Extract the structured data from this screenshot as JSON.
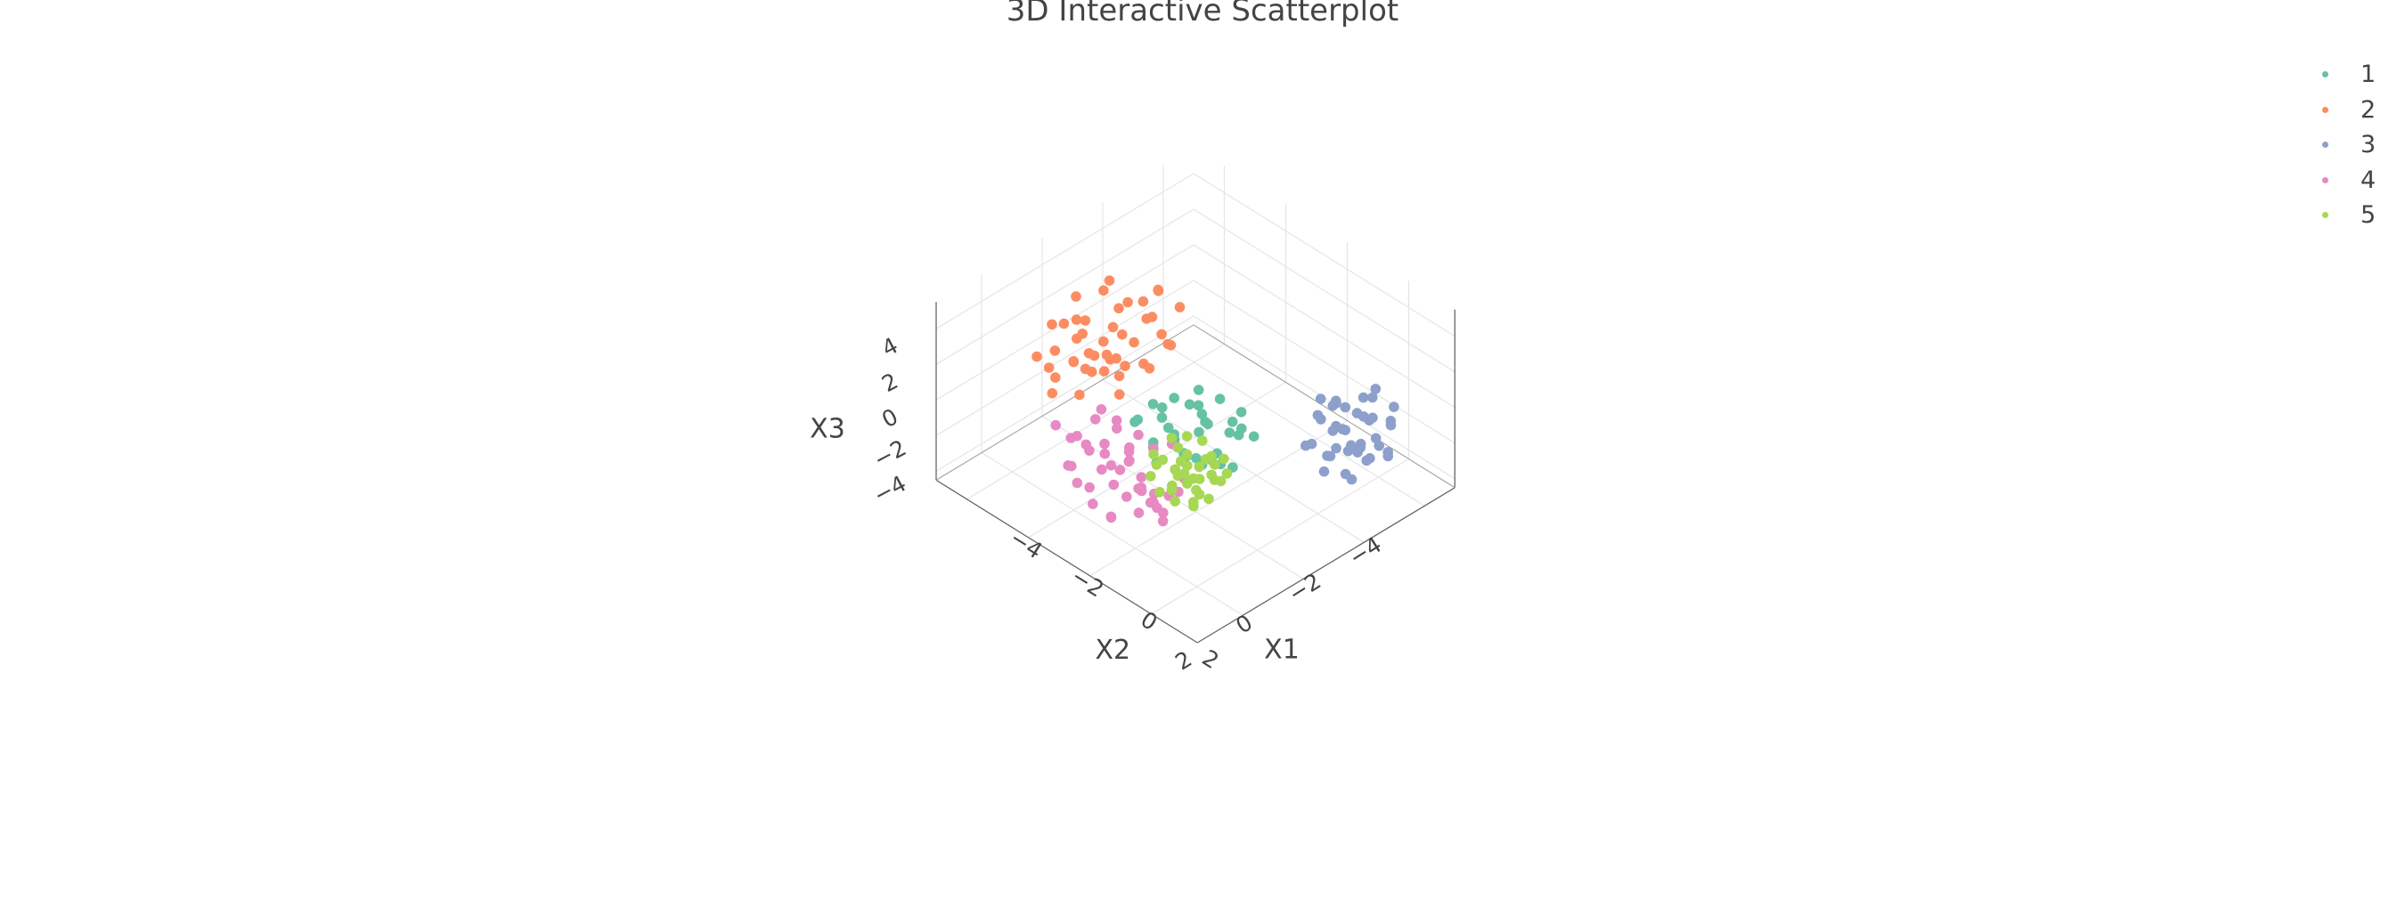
{
  "chart_data": {
    "type": "scatter",
    "title": "3D Interactive Scatterplot",
    "axes": {
      "x": {
        "label": "X1",
        "range": [
          -5,
          3.5
        ],
        "ticks": [
          "−4",
          "−2",
          "0",
          "2"
        ]
      },
      "y": {
        "label": "X2",
        "range": [
          -5,
          3.5
        ],
        "ticks": [
          "−4",
          "−2",
          "0",
          "2"
        ]
      },
      "z": {
        "label": "X3",
        "range": [
          -4.5,
          5.5
        ],
        "ticks": [
          "−4",
          "−2",
          "0",
          "2",
          "4"
        ]
      }
    },
    "grid": true,
    "legend_position": "top-right",
    "series": [
      {
        "name": "1",
        "color": "#66c2a5",
        "points": [
          [
            0.2,
            0.1,
            0.3
          ],
          [
            -0.5,
            0.4,
            0.1
          ],
          [
            0.8,
            -0.3,
            0.5
          ],
          [
            -0.2,
            -0.6,
            -0.4
          ],
          [
            0.4,
            0.7,
            -0.2
          ],
          [
            -0.9,
            0.2,
            0.6
          ],
          [
            1.0,
            0.5,
            0.0
          ],
          [
            -0.3,
            1.1,
            0.2
          ],
          [
            0.6,
            -0.9,
            -0.1
          ],
          [
            -1.1,
            -0.4,
            0.3
          ],
          [
            0.1,
            -0.1,
            1.0
          ],
          [
            0.9,
            0.9,
            0.4
          ],
          [
            -0.6,
            0.8,
            -0.7
          ],
          [
            0.3,
            -1.2,
            0.2
          ],
          [
            -0.8,
            -0.9,
            -0.3
          ],
          [
            1.3,
            0.1,
            -0.5
          ],
          [
            -0.1,
            0.3,
            -1.0
          ],
          [
            0.5,
            0.2,
            1.3
          ],
          [
            -1.3,
            0.6,
            -0.1
          ],
          [
            0.7,
            -0.5,
            0.8
          ],
          [
            -0.4,
            -0.2,
            0.9
          ],
          [
            0.0,
            1.3,
            -0.4
          ],
          [
            1.1,
            -0.8,
            0.1
          ],
          [
            -0.7,
            0.0,
            -0.9
          ],
          [
            0.2,
            0.9,
            0.7
          ],
          [
            -1.0,
            1.0,
            0.5
          ],
          [
            0.6,
            0.4,
            -0.8
          ],
          [
            -0.2,
            -1.0,
            0.6
          ],
          [
            1.4,
            0.6,
            0.3
          ],
          [
            -0.5,
            -0.6,
            1.2
          ],
          [
            0.8,
            1.2,
            -0.3
          ],
          [
            -1.2,
            -0.1,
            -0.6
          ],
          [
            0.3,
            -0.4,
            -1.3
          ],
          [
            -0.9,
            0.5,
            1.1
          ],
          [
            1.2,
            -0.2,
            0.9
          ]
        ]
      },
      {
        "name": "2",
        "color": "#fc8d62",
        "points": [
          [
            -2.4,
            0.3,
            3.6
          ],
          [
            -3.0,
            -0.5,
            3.2
          ],
          [
            -1.8,
            0.8,
            3.0
          ],
          [
            -2.6,
            1.4,
            2.6
          ],
          [
            -3.4,
            0.2,
            2.8
          ],
          [
            -2.0,
            -0.9,
            2.4
          ],
          [
            -2.9,
            1.0,
            4.2
          ],
          [
            -1.6,
            0.1,
            2.2
          ],
          [
            -3.6,
            -0.8,
            3.8
          ],
          [
            -2.2,
            1.8,
            3.4
          ],
          [
            -2.8,
            -1.4,
            2.0
          ],
          [
            -3.2,
            1.6,
            1.8
          ],
          [
            -1.9,
            -0.3,
            4.0
          ],
          [
            -2.5,
            0.9,
            1.6
          ],
          [
            -3.8,
            0.5,
            2.5
          ],
          [
            -2.1,
            -1.6,
            3.1
          ],
          [
            -3.1,
            -0.1,
            4.5
          ],
          [
            -1.7,
            1.3,
            2.9
          ],
          [
            -2.7,
            -0.7,
            1.4
          ],
          [
            -3.5,
            1.2,
            3.5
          ],
          [
            -2.3,
            0.5,
            2.1
          ],
          [
            -3.3,
            -1.1,
            2.6
          ],
          [
            -2.0,
            1.5,
            3.8
          ],
          [
            -2.9,
            0.0,
            1.2
          ],
          [
            -1.5,
            -0.6,
            2.7
          ],
          [
            -3.7,
            0.9,
            1.5
          ],
          [
            -2.4,
            -1.2,
            4.1
          ],
          [
            -2.6,
            2.0,
            2.3
          ],
          [
            -3.0,
            0.7,
            3.0
          ],
          [
            -1.8,
            -1.0,
            1.9
          ],
          [
            -3.4,
            -0.4,
            1.0
          ],
          [
            -2.2,
            0.2,
            3.3
          ],
          [
            -2.8,
            1.9,
            1.1
          ],
          [
            -3.9,
            0.0,
            3.4
          ],
          [
            -2.5,
            -0.2,
            0.8
          ],
          [
            -1.6,
            0.9,
            1.3
          ],
          [
            -3.2,
            0.4,
            0.5
          ],
          [
            -2.0,
            -0.5,
            0.9
          ],
          [
            -2.7,
            1.1,
            0.3
          ],
          [
            -3.6,
            -0.3,
            0.1
          ],
          [
            -2.3,
            1.6,
            4.4
          ],
          [
            -3.0,
            -1.8,
            2.9
          ],
          [
            -1.9,
            0.6,
            1.7
          ],
          [
            -2.6,
            -0.9,
            3.6
          ],
          [
            -3.5,
            1.7,
            2.2
          ]
        ]
      },
      {
        "name": "3",
        "color": "#8da0cb",
        "points": [
          [
            2.0,
            -2.6,
            -0.2
          ],
          [
            2.6,
            -3.2,
            0.3
          ],
          [
            1.8,
            -2.0,
            -0.8
          ],
          [
            2.9,
            -2.4,
            -0.5
          ],
          [
            2.2,
            -3.6,
            0.6
          ],
          [
            1.6,
            -2.9,
            -1.2
          ],
          [
            3.1,
            -2.8,
            0.1
          ],
          [
            2.4,
            -1.8,
            -1.5
          ],
          [
            1.9,
            -3.4,
            -0.4
          ],
          [
            2.7,
            -2.1,
            0.9
          ],
          [
            3.3,
            -3.0,
            -0.9
          ],
          [
            2.1,
            -2.5,
            1.3
          ],
          [
            2.5,
            -3.9,
            -0.7
          ],
          [
            1.7,
            -2.3,
            0.4
          ],
          [
            3.0,
            -1.9,
            -1.1
          ],
          [
            2.3,
            -3.1,
            -1.6
          ],
          [
            2.8,
            -2.7,
            1.1
          ],
          [
            1.5,
            -3.0,
            0.0
          ],
          [
            3.2,
            -2.2,
            0.5
          ],
          [
            2.0,
            -3.7,
            -1.0
          ],
          [
            2.6,
            -1.7,
            -0.3
          ],
          [
            1.8,
            -2.8,
            0.8
          ],
          [
            2.9,
            -3.5,
            -0.1
          ],
          [
            2.4,
            -2.2,
            -0.6
          ],
          [
            3.4,
            -2.6,
            0.2
          ],
          [
            2.2,
            -3.3,
            0.9
          ],
          [
            1.7,
            -1.9,
            -0.9
          ],
          [
            2.7,
            -3.8,
            0.4
          ],
          [
            3.1,
            -2.0,
            -1.4
          ],
          [
            2.1,
            -2.9,
            -1.8
          ],
          [
            2.5,
            -2.4,
            1.6
          ],
          [
            1.9,
            -3.2,
            -2.0
          ],
          [
            2.8,
            -1.6,
            0.0
          ],
          [
            3.0,
            -3.3,
            -1.3
          ],
          [
            2.3,
            -2.6,
            -0.1
          ],
          [
            1.6,
            -2.5,
            1.0
          ],
          [
            2.6,
            -3.0,
            -1.9
          ],
          [
            3.3,
            -2.4,
            -0.4
          ],
          [
            2.0,
            -2.1,
            0.7
          ],
          [
            2.4,
            -3.5,
            1.4
          ]
        ]
      },
      {
        "name": "4",
        "color": "#e78ac3",
        "points": [
          [
            -0.3,
            1.9,
            0.5
          ],
          [
            0.4,
            2.3,
            -0.4
          ],
          [
            -1.0,
            1.6,
            1.2
          ],
          [
            0.8,
            2.6,
            0.2
          ],
          [
            -0.6,
            2.9,
            -0.8
          ],
          [
            1.1,
            1.8,
            0.9
          ],
          [
            -1.3,
            2.2,
            -0.2
          ],
          [
            0.2,
            3.0,
            1.4
          ],
          [
            -0.8,
            1.4,
            -1.1
          ],
          [
            0.6,
            2.0,
            -1.3
          ],
          [
            -1.5,
            2.6,
            0.7
          ],
          [
            1.3,
            2.4,
            -0.7
          ],
          [
            -0.1,
            1.7,
            -1.5
          ],
          [
            0.9,
            3.2,
            0.6
          ],
          [
            -1.1,
            3.1,
            0.1
          ],
          [
            0.3,
            2.5,
            2.0
          ],
          [
            -0.5,
            2.1,
            1.8
          ],
          [
            1.5,
            2.9,
            1.1
          ],
          [
            -1.7,
            1.9,
            -0.6
          ],
          [
            0.0,
            2.8,
            -1.9
          ],
          [
            0.7,
            1.5,
            1.6
          ],
          [
            -0.9,
            2.4,
            2.2
          ],
          [
            1.0,
            2.1,
            -1.8
          ],
          [
            -1.4,
            1.7,
            1.5
          ],
          [
            0.5,
            3.3,
            -0.9
          ],
          [
            -0.2,
            2.3,
            0.0
          ],
          [
            1.2,
            1.6,
            0.3
          ],
          [
            -0.7,
            3.4,
            0.8
          ],
          [
            0.1,
            1.9,
            -0.5
          ],
          [
            -1.2,
            2.7,
            -1.4
          ],
          [
            1.4,
            2.7,
            0.0
          ],
          [
            -0.4,
            2.6,
            1.0
          ],
          [
            0.8,
            1.7,
            -1.0
          ],
          [
            -1.6,
            2.3,
            0.4
          ],
          [
            0.3,
            2.2,
            2.4
          ],
          [
            -0.9,
            1.8,
            -2.1
          ],
          [
            1.1,
            3.0,
            -0.3
          ],
          [
            -0.3,
            3.1,
            -1.2
          ],
          [
            0.6,
            2.8,
            1.9
          ],
          [
            -1.0,
            2.0,
            0.3
          ],
          [
            0.2,
            1.6,
            0.9
          ],
          [
            -0.6,
            2.5,
            -0.2
          ],
          [
            1.6,
            2.2,
            0.6
          ],
          [
            -1.8,
            2.8,
            1.3
          ],
          [
            0.4,
            1.9,
            -1.6
          ]
        ]
      },
      {
        "name": "5",
        "color": "#a6d854",
        "points": [
          [
            0.9,
            1.2,
            0.3
          ],
          [
            1.3,
            0.8,
            -0.2
          ],
          [
            0.5,
            1.6,
            0.6
          ],
          [
            1.6,
            1.0,
            0.9
          ],
          [
            0.7,
            0.6,
            -0.6
          ],
          [
            1.1,
            1.9,
            0.1
          ],
          [
            0.3,
            1.1,
            1.1
          ],
          [
            1.8,
            1.4,
            -0.4
          ],
          [
            0.6,
            1.8,
            -0.9
          ],
          [
            1.4,
            0.5,
            0.5
          ],
          [
            0.8,
            1.4,
            1.4
          ],
          [
            1.2,
            1.1,
            -1.1
          ],
          [
            0.4,
            0.9,
            -0.3
          ],
          [
            1.7,
            0.7,
            0.2
          ],
          [
            1.0,
            1.7,
            0.7
          ],
          [
            0.2,
            1.5,
            -0.1
          ],
          [
            1.5,
            1.6,
            -0.7
          ],
          [
            0.9,
            0.4,
            0.0
          ],
          [
            1.9,
            1.1,
            0.4
          ],
          [
            0.6,
            2.1,
            0.3
          ],
          [
            1.1,
            0.9,
            1.6
          ],
          [
            0.5,
            1.3,
            -1.4
          ],
          [
            1.4,
            1.8,
            1.0
          ],
          [
            0.8,
            0.8,
            -1.6
          ],
          [
            1.6,
            1.5,
            0.6
          ],
          [
            0.3,
            1.7,
            0.8
          ],
          [
            1.2,
            0.6,
            -0.8
          ],
          [
            0.7,
            1.0,
            0.5
          ],
          [
            1.8,
            1.9,
            -0.3
          ],
          [
            1.0,
            1.3,
            -0.5
          ],
          [
            0.4,
            0.7,
            0.9
          ],
          [
            1.5,
            1.2,
            1.3
          ],
          [
            0.9,
            1.6,
            -1.3
          ],
          [
            1.3,
            1.4,
            0.2
          ],
          [
            0.6,
            1.2,
            -0.6
          ]
        ]
      }
    ]
  }
}
